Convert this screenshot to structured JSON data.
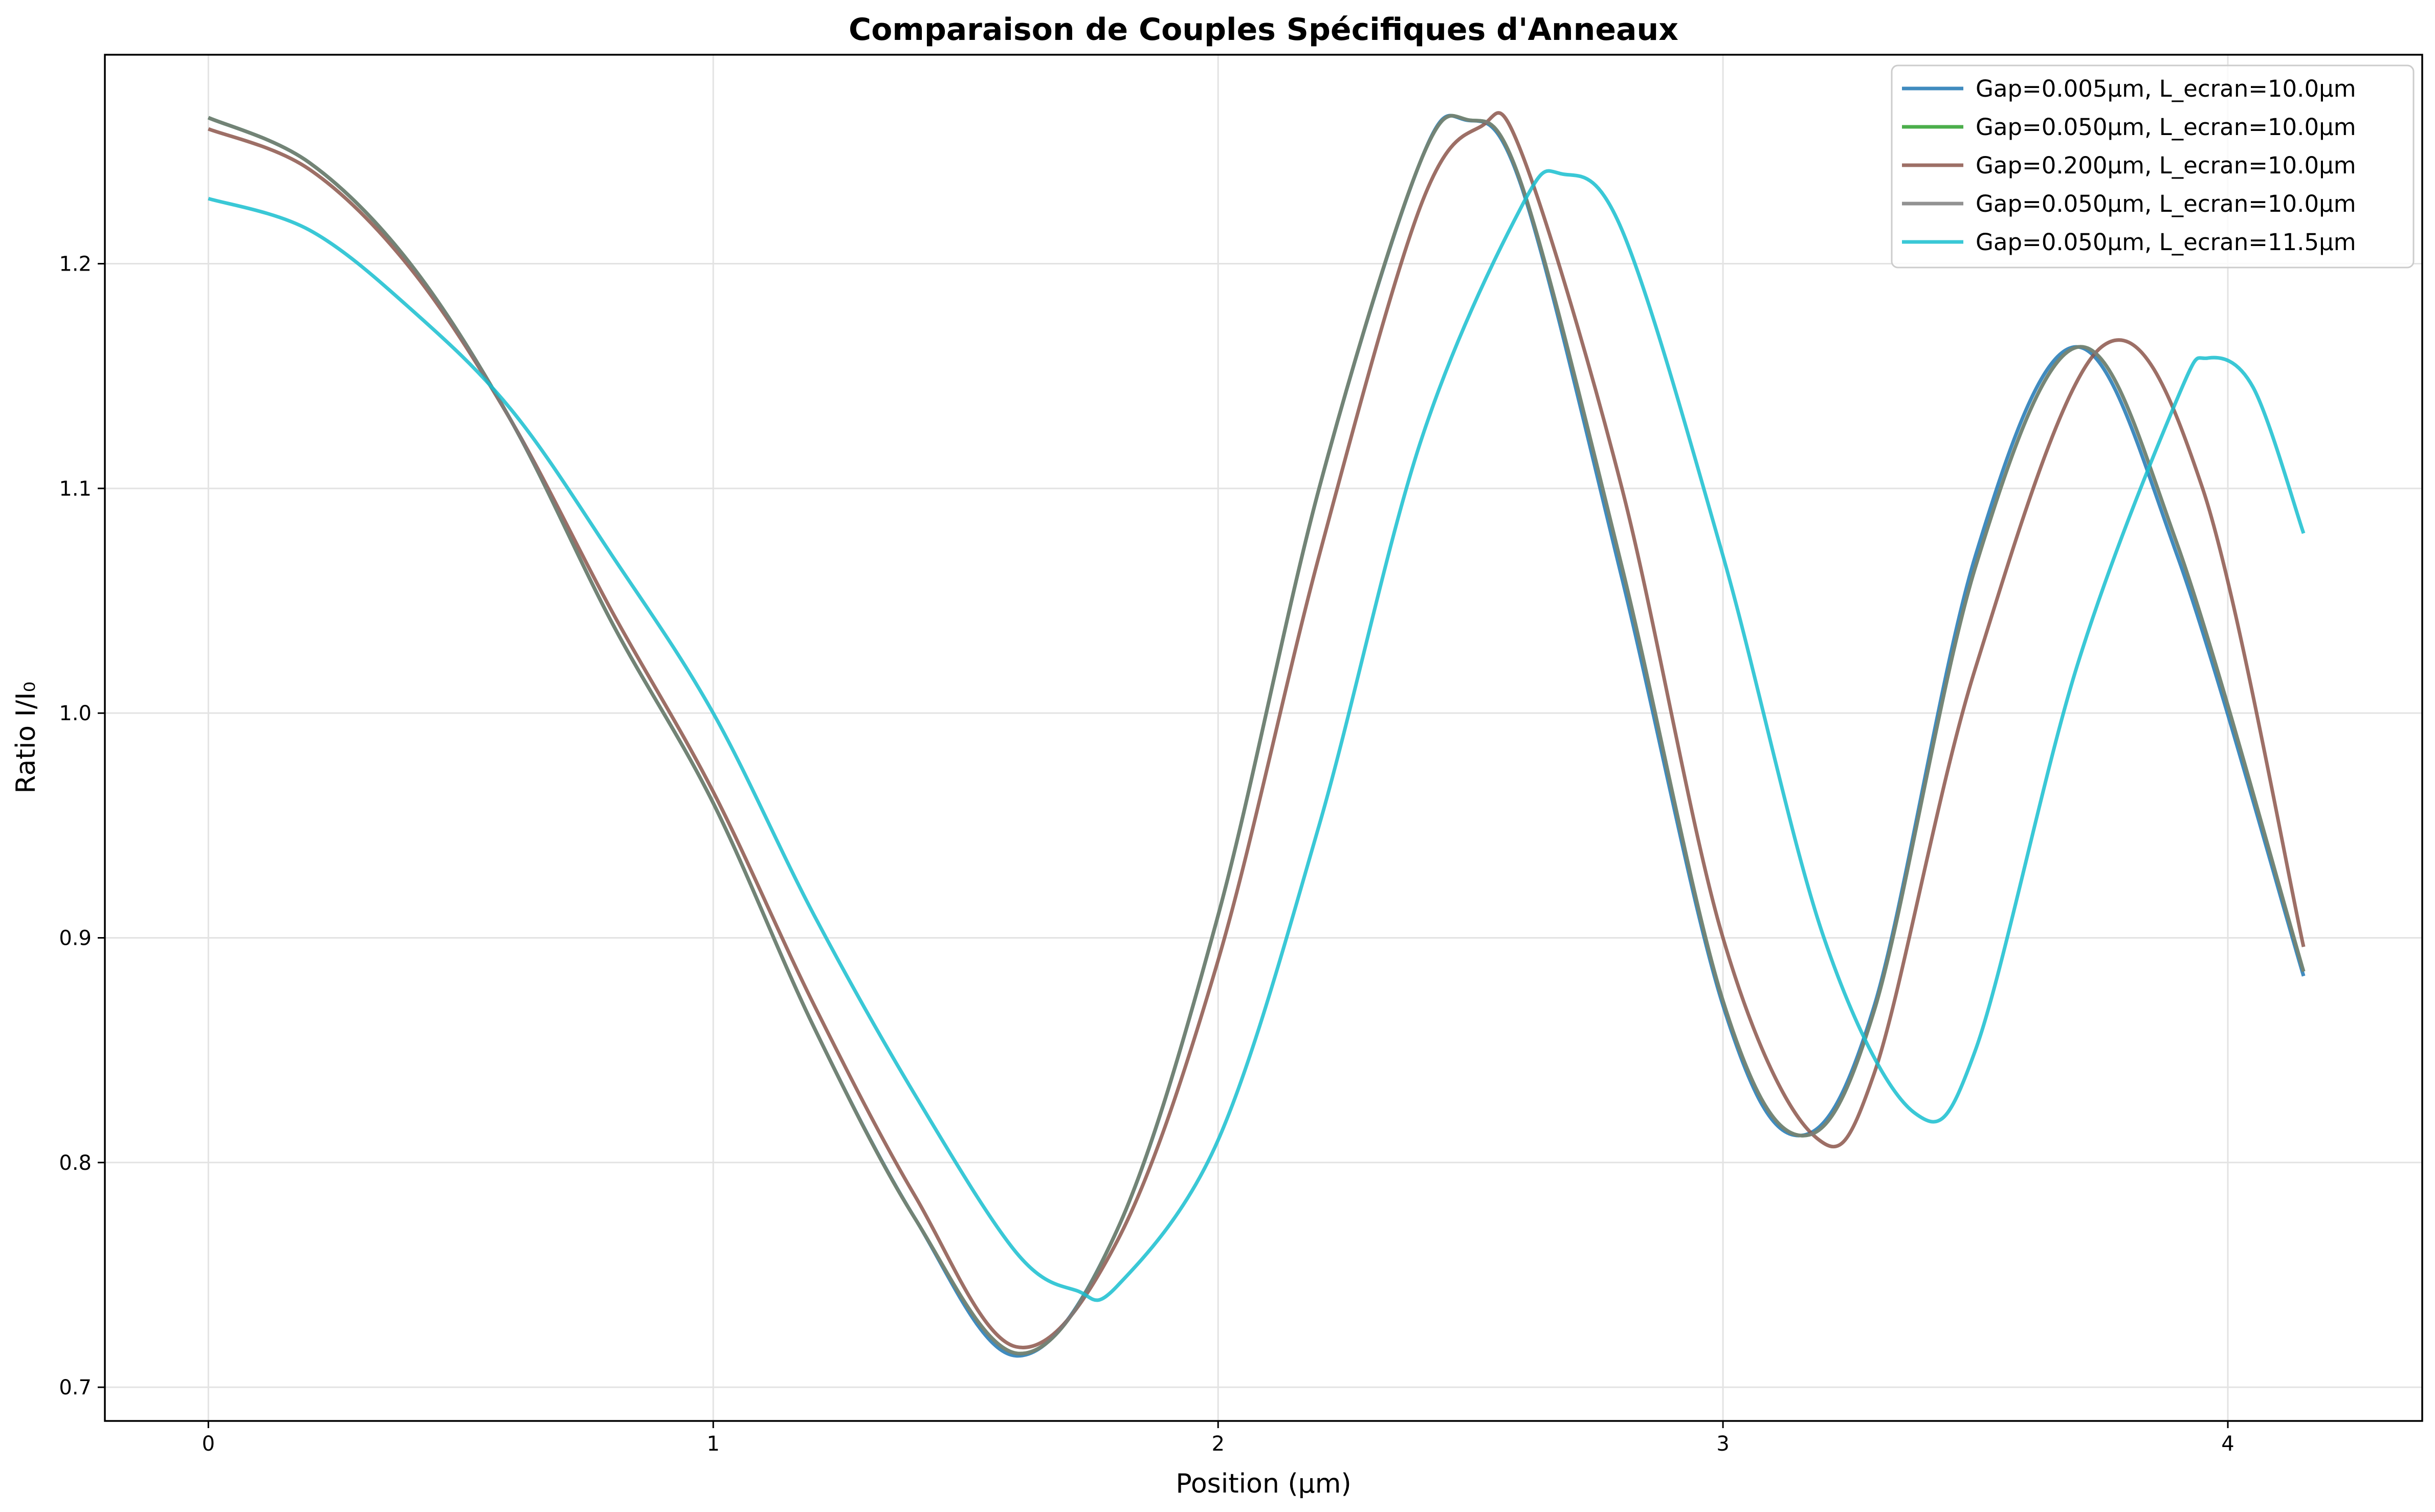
{
  "chart_data": {
    "type": "line",
    "title": "Comparaison de Couples Spécifiques d'Anneaux",
    "xlabel": "Position (µm)",
    "ylabel": "Ratio I/I₀",
    "xlim": [
      -0.205,
      4.385
    ],
    "ylim": [
      0.685,
      1.293
    ],
    "xticks": [
      0,
      1,
      2,
      3,
      4
    ],
    "xtick_labels": [
      "0",
      "1",
      "2",
      "3",
      "4"
    ],
    "yticks": [
      0.7,
      0.8,
      0.9,
      1.0,
      1.1,
      1.2
    ],
    "ytick_labels": [
      "0.7",
      "0.8",
      "0.9",
      "1.0",
      "1.1",
      "1.2"
    ],
    "grid": true,
    "legend_position": "top-right",
    "series": [
      {
        "name": "Gap=0.005µm, L_ecran=10.0µm",
        "color": "#1f77b4",
        "opacity": 0.85,
        "points": [
          [
            0,
            1.265
          ],
          [
            0.2,
            1.245
          ],
          [
            0.4,
            1.2
          ],
          [
            0.6,
            1.13
          ],
          [
            0.8,
            1.04
          ],
          [
            1.0,
            0.96
          ],
          [
            1.2,
            0.86
          ],
          [
            1.4,
            0.775
          ],
          [
            1.6,
            0.714
          ],
          [
            1.8,
            0.77
          ],
          [
            2.0,
            0.91
          ],
          [
            2.2,
            1.1
          ],
          [
            2.4,
            1.245
          ],
          [
            2.49,
            1.264
          ],
          [
            2.6,
            1.235
          ],
          [
            2.8,
            1.06
          ],
          [
            3.0,
            0.87
          ],
          [
            3.15,
            0.812
          ],
          [
            3.3,
            0.87
          ],
          [
            3.5,
            1.07
          ],
          [
            3.7,
            1.163
          ],
          [
            3.9,
            1.07
          ],
          [
            4.15,
            0.883
          ]
        ]
      },
      {
        "name": "Gap=0.050µm, L_ecran=10.0µm",
        "color": "#2ca02c",
        "opacity": 0.85,
        "points": [
          [
            0,
            1.265
          ],
          [
            0.2,
            1.245
          ],
          [
            0.4,
            1.2
          ],
          [
            0.6,
            1.13
          ],
          [
            0.8,
            1.04
          ],
          [
            1.0,
            0.96
          ],
          [
            1.2,
            0.86
          ],
          [
            1.4,
            0.775
          ],
          [
            1.605,
            0.715
          ],
          [
            1.8,
            0.77
          ],
          [
            2.0,
            0.91
          ],
          [
            2.2,
            1.1
          ],
          [
            2.4,
            1.245
          ],
          [
            2.495,
            1.264
          ],
          [
            2.6,
            1.236
          ],
          [
            2.8,
            1.065
          ],
          [
            3.0,
            0.872
          ],
          [
            3.155,
            0.812
          ],
          [
            3.3,
            0.868
          ],
          [
            3.5,
            1.065
          ],
          [
            3.705,
            1.163
          ],
          [
            3.9,
            1.075
          ],
          [
            4.15,
            0.885
          ]
        ]
      },
      {
        "name": "Gap=0.200µm, L_ecran=10.0µm",
        "color": "#8c564b",
        "opacity": 0.85,
        "points": [
          [
            0,
            1.26
          ],
          [
            0.2,
            1.242
          ],
          [
            0.4,
            1.198
          ],
          [
            0.6,
            1.13
          ],
          [
            0.8,
            1.045
          ],
          [
            1.0,
            0.965
          ],
          [
            1.2,
            0.87
          ],
          [
            1.4,
            0.785
          ],
          [
            1.6,
            0.718
          ],
          [
            1.8,
            0.765
          ],
          [
            2.0,
            0.89
          ],
          [
            2.2,
            1.07
          ],
          [
            2.4,
            1.225
          ],
          [
            2.52,
            1.261
          ],
          [
            2.6,
            1.25
          ],
          [
            2.8,
            1.1
          ],
          [
            3.0,
            0.9
          ],
          [
            3.18,
            0.812
          ],
          [
            3.3,
            0.84
          ],
          [
            3.5,
            1.02
          ],
          [
            3.75,
            1.163
          ],
          [
            3.95,
            1.1
          ],
          [
            4.15,
            0.896
          ]
        ]
      },
      {
        "name": "Gap=0.050µm, L_ecran=10.0µm",
        "color": "#7f7f7f",
        "opacity": 0.85,
        "points": [
          [
            0,
            1.265
          ],
          [
            0.2,
            1.245
          ],
          [
            0.4,
            1.2
          ],
          [
            0.6,
            1.13
          ],
          [
            0.8,
            1.04
          ],
          [
            1.0,
            0.96
          ],
          [
            1.2,
            0.86
          ],
          [
            1.4,
            0.775
          ],
          [
            1.605,
            0.715
          ],
          [
            1.8,
            0.77
          ],
          [
            2.0,
            0.91
          ],
          [
            2.2,
            1.1
          ],
          [
            2.4,
            1.245
          ],
          [
            2.495,
            1.264
          ],
          [
            2.6,
            1.236
          ],
          [
            2.8,
            1.065
          ],
          [
            3.0,
            0.872
          ],
          [
            3.155,
            0.812
          ],
          [
            3.3,
            0.868
          ],
          [
            3.5,
            1.065
          ],
          [
            3.705,
            1.163
          ],
          [
            3.9,
            1.075
          ],
          [
            4.15,
            0.885
          ]
        ]
      },
      {
        "name": "Gap=0.050µm, L_ecran=11.5µm",
        "color": "#17becf",
        "opacity": 0.85,
        "points": [
          [
            0,
            1.229
          ],
          [
            0.2,
            1.215
          ],
          [
            0.4,
            1.18
          ],
          [
            0.6,
            1.135
          ],
          [
            0.8,
            1.07
          ],
          [
            1.0,
            1.0
          ],
          [
            1.2,
            0.91
          ],
          [
            1.4,
            0.83
          ],
          [
            1.6,
            0.76
          ],
          [
            1.72,
            0.743
          ],
          [
            1.8,
            0.745
          ],
          [
            2.0,
            0.81
          ],
          [
            2.2,
            0.95
          ],
          [
            2.4,
            1.12
          ],
          [
            2.6,
            1.225
          ],
          [
            2.68,
            1.24
          ],
          [
            2.8,
            1.215
          ],
          [
            3.0,
            1.07
          ],
          [
            3.2,
            0.9
          ],
          [
            3.38,
            0.822
          ],
          [
            3.5,
            0.85
          ],
          [
            3.7,
            1.02
          ],
          [
            3.9,
            1.14
          ],
          [
            3.96,
            1.158
          ],
          [
            4.05,
            1.145
          ],
          [
            4.15,
            1.08
          ]
        ]
      }
    ]
  }
}
